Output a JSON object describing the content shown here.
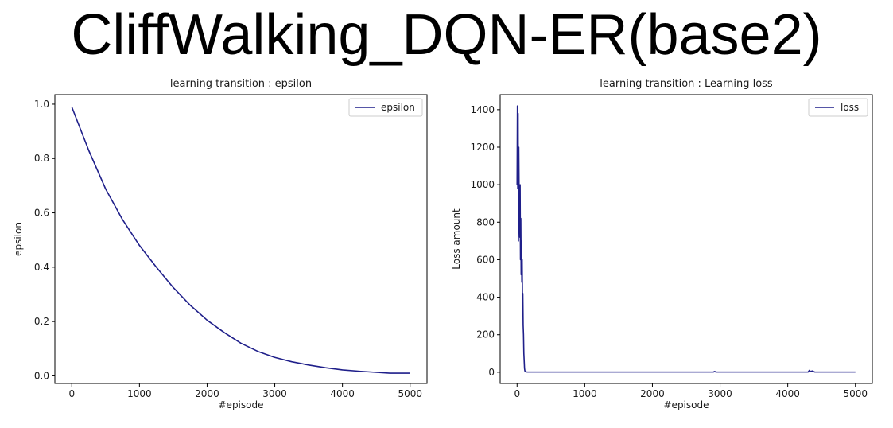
{
  "page": {
    "title": "CliffWalking_DQN-ER(base2)"
  },
  "colors": {
    "line": "#1f1f8a",
    "axis": "#000000",
    "background": "#ffffff",
    "legend_border": "#cccccc"
  },
  "chart_data": [
    {
      "type": "line",
      "title": "learning transition : epsilon",
      "xlabel": "#episode",
      "ylabel": "epsilon",
      "xlim": [
        -250,
        5250
      ],
      "ylim": [
        -0.028,
        1.035
      ],
      "xticks": [
        0,
        1000,
        2000,
        3000,
        4000,
        5000
      ],
      "xtick_labels": [
        "0",
        "1000",
        "2000",
        "3000",
        "4000",
        "5000"
      ],
      "yticks": [
        0.0,
        0.2,
        0.4,
        0.6,
        0.8,
        1.0
      ],
      "ytick_labels": [
        "0.0",
        "0.2",
        "0.4",
        "0.6",
        "0.8",
        "1.0"
      ],
      "legend": {
        "position": "top-right",
        "entries": [
          "epsilon"
        ]
      },
      "grid": false,
      "series": [
        {
          "name": "epsilon",
          "x": [
            0,
            250,
            500,
            750,
            1000,
            1250,
            1500,
            1750,
            2000,
            2250,
            2500,
            2750,
            3000,
            3250,
            3500,
            3750,
            4000,
            4250,
            4500,
            4700,
            5000
          ],
          "y": [
            0.99,
            0.83,
            0.688,
            0.575,
            0.48,
            0.4,
            0.325,
            0.26,
            0.205,
            0.16,
            0.12,
            0.09,
            0.068,
            0.052,
            0.04,
            0.03,
            0.022,
            0.017,
            0.013,
            0.01,
            0.01
          ]
        }
      ]
    },
    {
      "type": "line",
      "title": "learning transition : Learning loss",
      "xlabel": "#episode",
      "ylabel": "Loss amount",
      "xlim": [
        -250,
        5250
      ],
      "ylim": [
        -60,
        1480
      ],
      "xticks": [
        0,
        1000,
        2000,
        3000,
        4000,
        5000
      ],
      "xtick_labels": [
        "0",
        "1000",
        "2000",
        "3000",
        "4000",
        "5000"
      ],
      "yticks": [
        0,
        200,
        400,
        600,
        800,
        1000,
        1200,
        1400
      ],
      "ytick_labels": [
        "0",
        "200",
        "400",
        "600",
        "800",
        "1000",
        "1200",
        "1400"
      ],
      "legend": {
        "position": "top-right",
        "entries": [
          "loss"
        ]
      },
      "grid": false,
      "series": [
        {
          "name": "loss",
          "x": [
            0,
            5,
            10,
            15,
            20,
            25,
            30,
            35,
            40,
            45,
            50,
            55,
            60,
            65,
            70,
            75,
            80,
            85,
            90,
            95,
            100,
            105,
            110,
            115,
            120,
            130,
            150,
            200,
            300,
            500,
            1000,
            2000,
            2900,
            2920,
            2940,
            3000,
            4000,
            4300,
            4320,
            4340,
            4360,
            4400,
            5000
          ],
          "y": [
            1000,
            1420,
            980,
            1380,
            700,
            1200,
            950,
            850,
            720,
            1000,
            600,
            820,
            520,
            700,
            480,
            600,
            380,
            420,
            250,
            200,
            100,
            60,
            20,
            8,
            3,
            2,
            1,
            1,
            1,
            1,
            1,
            1,
            1,
            4,
            1,
            1,
            1,
            1,
            10,
            3,
            7,
            1,
            1
          ]
        }
      ]
    }
  ]
}
